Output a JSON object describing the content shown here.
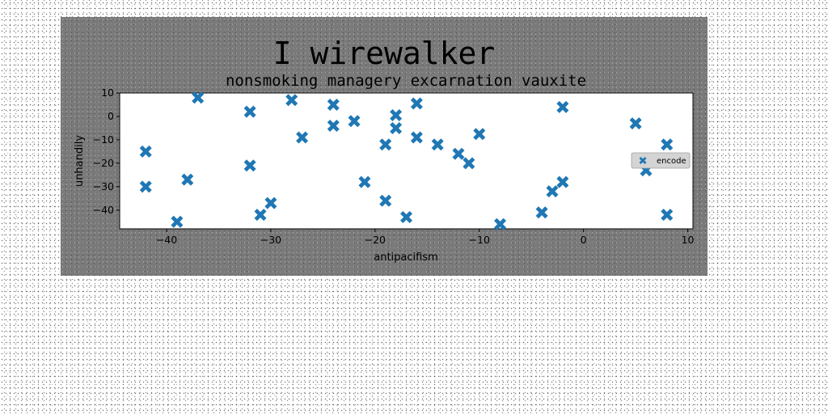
{
  "chart_data": {
    "type": "scatter",
    "suptitle": "I wirewalker",
    "title": "nonsmoking managery excarnation vauxite",
    "xlabel": "antipacifism",
    "ylabel": "unhandily",
    "xlim": [
      -44.5,
      10.5
    ],
    "ylim": [
      -48,
      10
    ],
    "xticks": [
      -40,
      -30,
      -20,
      -10,
      0,
      10
    ],
    "yticks": [
      10,
      0,
      -10,
      -20,
      -30,
      -40
    ],
    "marker": "X",
    "grid": false,
    "legend_position": "center-right",
    "series": [
      {
        "name": "encode",
        "color": "#1f77b4",
        "points": [
          [
            -42,
            -15
          ],
          [
            -42,
            -30
          ],
          [
            -39,
            -45
          ],
          [
            -38,
            -27
          ],
          [
            -37,
            8
          ],
          [
            -32,
            2
          ],
          [
            -32,
            -21
          ],
          [
            -31,
            -42
          ],
          [
            -30,
            -37
          ],
          [
            -28,
            7
          ],
          [
            -27,
            -9
          ],
          [
            -24,
            5
          ],
          [
            -24,
            -4
          ],
          [
            -22,
            -2
          ],
          [
            -21,
            -28
          ],
          [
            -19,
            -12
          ],
          [
            -19,
            -36
          ],
          [
            -18,
            0.5
          ],
          [
            -18,
            -5
          ],
          [
            -17,
            -43
          ],
          [
            -16,
            5.5
          ],
          [
            -16,
            -9
          ],
          [
            -14,
            -12
          ],
          [
            -12,
            -16
          ],
          [
            -11,
            -20
          ],
          [
            -10,
            -7.5
          ],
          [
            -8,
            -46
          ],
          [
            -4,
            -41
          ],
          [
            -3,
            -32
          ],
          [
            -2,
            4
          ],
          [
            -2,
            -28
          ],
          [
            5,
            -3
          ],
          [
            6,
            -23
          ],
          [
            8,
            -12
          ],
          [
            8,
            -42
          ]
        ]
      }
    ]
  }
}
